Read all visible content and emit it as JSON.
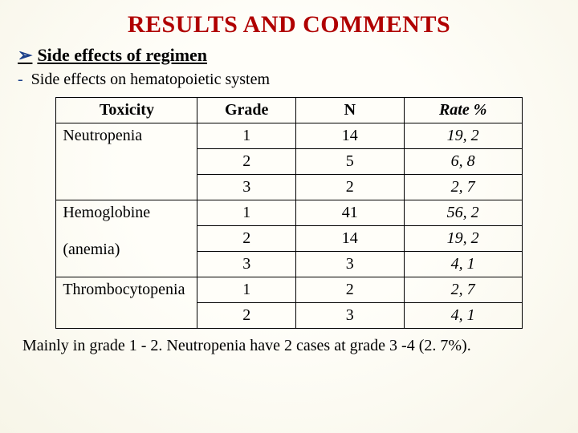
{
  "title": "RESULTS AND COMMENTS",
  "subhead": "Side effects of regimen",
  "subline": "Side effects on hematopoietic system",
  "table": {
    "headers": {
      "toxicity": "Toxicity",
      "grade": "Grade",
      "n": "N",
      "rate": "Rate %"
    },
    "groups": [
      {
        "label": "Neutropenia",
        "rows": [
          {
            "grade": "1",
            "n": "14",
            "rate": "19, 2"
          },
          {
            "grade": "2",
            "n": "5",
            "rate": "6, 8"
          },
          {
            "grade": "3",
            "n": "2",
            "rate": "2, 7"
          }
        ]
      },
      {
        "label": "Hemoglobine\n(anemia)",
        "rows": [
          {
            "grade": "1",
            "n": "41",
            "rate": "56, 2"
          },
          {
            "grade": "2",
            "n": "14",
            "rate": "19, 2"
          },
          {
            "grade": "3",
            "n": "3",
            "rate": "4, 1"
          }
        ]
      },
      {
        "label": "Thrombocytopenia",
        "rows": [
          {
            "grade": "1",
            "n": "2",
            "rate": "2, 7"
          },
          {
            "grade": "2",
            "n": "3",
            "rate": "4, 1"
          }
        ]
      }
    ]
  },
  "footer": "Mainly in grade 1 - 2. Neutropenia  have 2 cases at grade 3 -4  (2. 7%).",
  "colors": {
    "title": "#b00000",
    "bullet": "#1a3f8a",
    "text": "#000000",
    "border": "#000000",
    "background": "#fdfcf6"
  },
  "fonts": {
    "family": "Times New Roman",
    "title_size_pt": 30,
    "body_size_pt": 20,
    "subhead_size_pt": 22
  }
}
